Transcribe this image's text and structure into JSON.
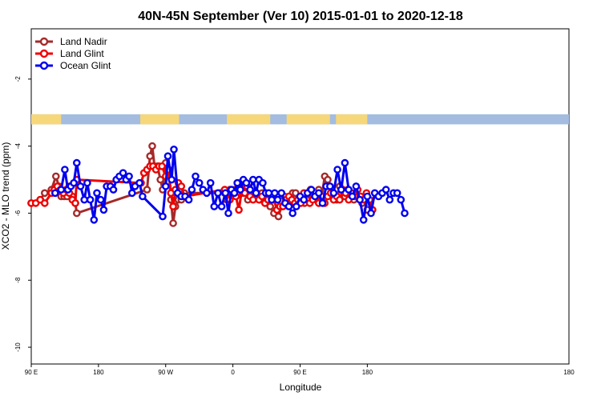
{
  "chart_data": {
    "type": "line",
    "title": "40N-45N September (Ver 10)   2015-01-01 to 2020-12-18",
    "xlabel": "Longitude",
    "ylabel": "XCO2 - MLO trend (ppm)",
    "xlim": [
      0,
      720
    ],
    "ylim": [
      -10.5,
      -0.5
    ],
    "x_ticks": [
      {
        "value": 0,
        "label": "90 E"
      },
      {
        "value": 90,
        "label": "180"
      },
      {
        "value": 180,
        "label": "90 W"
      },
      {
        "value": 270,
        "label": "0"
      },
      {
        "value": 360,
        "label": "90 E"
      },
      {
        "value": 450,
        "label": "180"
      }
    ],
    "y_ticks": [
      {
        "value": -2,
        "label": "-2"
      },
      {
        "value": -4,
        "label": "-4"
      },
      {
        "value": -6,
        "label": "-6"
      },
      {
        "value": -8,
        "label": "-8"
      },
      {
        "value": -10,
        "label": "-10"
      }
    ],
    "land_ocean_strip": {
      "y_range": [
        -3.35,
        -3.05
      ],
      "land_color": "#f6d77a",
      "ocean_color": "#a3bce0",
      "land_segments": [
        [
          0,
          40
        ],
        [
          146,
          198
        ],
        [
          262,
          320
        ],
        [
          342,
          400
        ],
        [
          408,
          450
        ]
      ]
    },
    "legend_position": "top-left",
    "series": [
      {
        "name": "Land Nadir",
        "color": "#a52a2a",
        "x": [
          0,
          12,
          18,
          27,
          33,
          37,
          40,
          44,
          48,
          51,
          55,
          59,
          61,
          155,
          159,
          162,
          165,
          169,
          173,
          176,
          180,
          184,
          187,
          190,
          193,
          197,
          201,
          205,
          259,
          262,
          266,
          270,
          273,
          276,
          279,
          283,
          287,
          290,
          294,
          298,
          302,
          306,
          309,
          313,
          317,
          320,
          325,
          331,
          335,
          339,
          343,
          347,
          350,
          354,
          358,
          362,
          366,
          370,
          374,
          378,
          382,
          385,
          389,
          393,
          397,
          401,
          405,
          409,
          413,
          417,
          420,
          424,
          428,
          432,
          436,
          439,
          443,
          447,
          450
        ],
        "y": [
          -5.7,
          -5.6,
          -5.4,
          -5.3,
          -4.9,
          -5.2,
          -5.5,
          -5.5,
          -5.5,
          -5.2,
          -5.5,
          -5.7,
          -6.0,
          -5.3,
          -4.3,
          -4.0,
          -4.6,
          -4.6,
          -5.0,
          -5.3,
          -4.5,
          -4.7,
          -5.6,
          -6.3,
          -5.8,
          -5.6,
          -5.6,
          -5.4,
          -5.4,
          -5.6,
          -5.3,
          -5.4,
          -5.3,
          -5.1,
          -5.1,
          -5.4,
          -5.2,
          -5.6,
          -5.5,
          -5.5,
          -5.4,
          -5.6,
          -5.4,
          -5.6,
          -5.5,
          -5.8,
          -6.0,
          -6.1,
          -5.8,
          -5.5,
          -5.7,
          -5.7,
          -5.4,
          -5.4,
          -5.6,
          -5.6,
          -5.7,
          -5.6,
          -5.3,
          -5.5,
          -5.5,
          -5.3,
          -5.5,
          -4.9,
          -5.0,
          -5.4,
          -5.5,
          -5.6,
          -5.2,
          -5.3,
          -5.5,
          -5.3,
          -5.4,
          -5.6,
          -5.5,
          -5.5,
          -5.7,
          -5.6,
          -5.9
        ]
      },
      {
        "name": "Land Glint",
        "color": "#ee0000",
        "x": [
          0,
          6,
          12,
          18,
          27,
          31,
          35,
          39,
          43,
          47,
          51,
          55,
          59,
          61,
          147,
          151,
          155,
          159,
          163,
          167,
          171,
          175,
          180,
          184,
          187,
          190,
          193,
          197,
          201,
          205,
          259,
          263,
          266,
          270,
          274,
          278,
          282,
          286,
          289,
          293,
          297,
          301,
          305,
          309,
          313,
          317,
          321,
          325,
          329,
          333,
          337,
          341,
          345,
          349,
          353,
          357,
          361,
          365,
          369,
          373,
          377,
          381,
          385,
          389,
          393,
          397,
          401,
          405,
          409,
          413,
          417,
          421,
          425,
          429,
          433,
          437,
          441,
          445,
          449,
          453,
          457
        ],
        "y": [
          -5.7,
          -5.7,
          -5.6,
          -5.7,
          -5.4,
          -5.3,
          -5.2,
          -5.3,
          -5.4,
          -5.3,
          -5.4,
          -5.6,
          -5.7,
          -5.0,
          -5.1,
          -4.8,
          -4.7,
          -4.6,
          -4.6,
          -4.7,
          -4.6,
          -4.6,
          -4.9,
          -4.7,
          -5.4,
          -5.8,
          -5.3,
          -5.1,
          -5.2,
          -5.5,
          -5.3,
          -5.4,
          -5.6,
          -5.4,
          -5.5,
          -5.9,
          -5.3,
          -5.4,
          -5.2,
          -5.5,
          -5.6,
          -5.4,
          -5.6,
          -5.5,
          -5.7,
          -5.6,
          -5.5,
          -5.6,
          -5.9,
          -5.8,
          -5.8,
          -5.6,
          -5.5,
          -5.6,
          -5.7,
          -5.6,
          -5.7,
          -5.4,
          -5.6,
          -5.7,
          -5.6,
          -5.5,
          -5.7,
          -5.5,
          -5.7,
          -5.5,
          -5.4,
          -5.6,
          -5.5,
          -5.6,
          -5.3,
          -5.4,
          -5.6,
          -5.4,
          -5.5,
          -5.3,
          -5.5,
          -5.6,
          -5.4,
          -5.6,
          -5.9
        ]
      },
      {
        "name": "Ocean Glint",
        "color": "#0000ee",
        "x": [
          32,
          40,
          45,
          49,
          53,
          57,
          61,
          66,
          71,
          75,
          79,
          84,
          88,
          93,
          97,
          101,
          106,
          110,
          114,
          118,
          123,
          127,
          131,
          135,
          139,
          145,
          149,
          176,
          180,
          183,
          188,
          191,
          196,
          201,
          206,
          211,
          215,
          220,
          225,
          230,
          235,
          240,
          245,
          250,
          255,
          260,
          264,
          268,
          272,
          276,
          280,
          284,
          288,
          293,
          297,
          301,
          305,
          310,
          314,
          318,
          322,
          326,
          330,
          335,
          340,
          345,
          350,
          355,
          360,
          365,
          370,
          375,
          380,
          385,
          390,
          395,
          400,
          405,
          410,
          415,
          420,
          425,
          430,
          435,
          440,
          445,
          450,
          455,
          460,
          465,
          470,
          475,
          480,
          485,
          490,
          495,
          500
        ],
        "y": [
          -5.4,
          -5.3,
          -4.7,
          -5.3,
          -5.2,
          -5.1,
          -4.5,
          -5.2,
          -5.6,
          -5.1,
          -5.6,
          -6.2,
          -5.4,
          -5.6,
          -5.9,
          -5.2,
          -5.2,
          -5.3,
          -5.0,
          -4.9,
          -4.8,
          -5.0,
          -4.9,
          -5.4,
          -5.2,
          -5.1,
          -5.5,
          -6.1,
          -5.2,
          -4.3,
          -5.0,
          -4.1,
          -5.4,
          -5.5,
          -5.5,
          -5.6,
          -5.3,
          -4.9,
          -5.1,
          -5.3,
          -5.4,
          -5.1,
          -5.8,
          -5.4,
          -5.8,
          -5.4,
          -6.0,
          -5.3,
          -5.4,
          -5.1,
          -5.3,
          -5.0,
          -5.1,
          -5.3,
          -5.0,
          -5.4,
          -5.0,
          -5.1,
          -5.4,
          -5.4,
          -5.6,
          -5.4,
          -5.6,
          -5.4,
          -5.7,
          -5.8,
          -6.0,
          -5.8,
          -5.5,
          -5.6,
          -5.4,
          -5.3,
          -5.5,
          -5.4,
          -5.7,
          -5.2,
          -5.2,
          -5.4,
          -4.7,
          -5.3,
          -4.5,
          -5.3,
          -5.5,
          -5.2,
          -5.6,
          -6.2,
          -5.5,
          -6.0,
          -5.4,
          -5.5,
          -5.4,
          -5.3,
          -5.6,
          -5.4,
          -5.4,
          -5.6,
          -6.0
        ]
      }
    ]
  }
}
